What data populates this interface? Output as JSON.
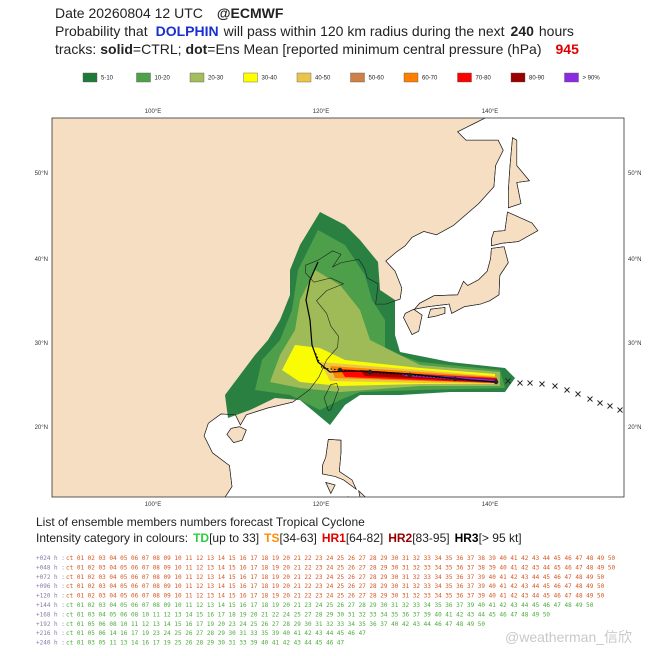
{
  "header": {
    "date": "Date 20260804 12 UTC",
    "source": "@ECMWF",
    "prob_prefix": "Probability that",
    "storm": "DOLPHIN",
    "prob_mid": "will pass within 120 km radius during the next",
    "hours": "240",
    "hours_unit": "hours",
    "tracks_label": "tracks:",
    "solid": "solid",
    "solid_desc": "=CTRL;",
    "dot": "dot",
    "dot_desc": "=Ens Mean [reported minimum central pressure (hPa)",
    "pressure": "945"
  },
  "legend": {
    "items": [
      {
        "label": "5-10",
        "color": "#1f7a3a"
      },
      {
        "label": "10-20",
        "color": "#4fa04a"
      },
      {
        "label": "20-30",
        "color": "#a3bd5a"
      },
      {
        "label": "30-40",
        "color": "#ffff00"
      },
      {
        "label": "40-50",
        "color": "#e9c54a"
      },
      {
        "label": "50-60",
        "color": "#cd8048"
      },
      {
        "label": "60-70",
        "color": "#ff7f00"
      },
      {
        "label": "70-80",
        "color": "#ff0000"
      },
      {
        "label": "80-90",
        "color": "#9b0000"
      },
      {
        "label": "> 90%",
        "color": "#8a2be2"
      }
    ]
  },
  "map": {
    "lon_labels": [
      "100°E",
      "120°E",
      "140°E"
    ],
    "lat_labels": [
      "50°N",
      "40°N",
      "30°N",
      "20°N"
    ]
  },
  "members": {
    "title": "List of ensemble members numbers forecast Tropical Cyclone",
    "intensity_prefix": "Intensity category in colours:",
    "categories": [
      {
        "code": "TD",
        "range": "[up to 33]",
        "color": "#2ecc40"
      },
      {
        "code": "TS",
        "range": "[34-63]",
        "color": "#ff8c00"
      },
      {
        "code": "HR1",
        "range": "[64-82]",
        "color": "#e00000"
      },
      {
        "code": "HR2",
        "range": "[83-95]",
        "color": "#9b0000"
      },
      {
        "code": "HR3",
        "range": "[> 95 kt]",
        "color": "#000000"
      }
    ],
    "rows": [
      {
        "label": "+024 h :",
        "members": "ct 01 02 03 04 05 06 07 08 09 10 11 12 13 14 15 16 17 18 19 20 21 22 23 24 25 26 27 28 29 30 31 32 33 34 35 36 37 38 39 40 41 42 43 44 45 46 47 48 49 50"
      },
      {
        "label": "+048 h :",
        "members": "ct 01 02 03 04 05 06 07 08 09 10 11 12 13 14 15 16 17 18 19 20 21 22 23 24 25 26 27 28 29 30 31 32 33 34 35 36 37 38 39 40 41 42 43 44 45 46 47 48 49 50"
      },
      {
        "label": "+072 h :",
        "members": "ct 01 02 03 04 05 06 07 08 09 10 11 12 13 14 15 16 17 18 19 20 21 22 23 24 25 26 27 28 29 30 31 32 33 34 35 36 37 39 40 41 42 43 44 45 46 47 48 49 50"
      },
      {
        "label": "+096 h :",
        "members": "ct 01 02 03 04 05 06 07 08 09 10 11 12 13 14 15 16 17 18 19 20 21 22 23 24 25 26 27 28 29 30 31 32 33 34 35 36 37 39 40 41 42 43 44 45 46 47 48 49 50"
      },
      {
        "label": "+120 h :",
        "members": "ct 01 02 03 04 05 06 07 08 09 10 11 12 13 14 15 16 17 18 19 20 21 22 23 24 25 26 27 28 29 30 31 32 33 34 35 36 37 39 40 41 42 43 44 45 46 47 48 49 50"
      },
      {
        "label": "+144 h :",
        "members": "ct 01 02 03 04 05 06 07 08 09 10 11 12 13 14 15 16 17 18 19 20 21 23 24 25 26 27 28 29 30 31 32 33 34 35 36 37 39 40 41 42 43 44 45 46 47 48 49 50"
      },
      {
        "label": "+168 h :",
        "members": "ct 01 03 04 05 06 08 10 11 12 13 14 15 16 17 18 19 20 21 22 24 25 27 28 29 30 31 32 33 34 35 36 37 39 40 41 42 43 44 45 46 47 48 49 50"
      },
      {
        "label": "+192 h :",
        "members": "ct 01 05 06 08 10 11 12 13 14 15 16 17 19 20 23 24 25 26 27 28 29 30 31 32 33 34 35 36 37 40 42 43 44 46 47 48 49 50"
      },
      {
        "label": "+216 h :",
        "members": "ct 01 05 06 14 16 17 19 23 24 25 26 27 28 29 30 31 33 35 39 40 41 42 43 44 45 46 47"
      },
      {
        "label": "+240 h :",
        "members": "ct 01 03 05 11 13 14 16 17 19 25 26 28 29 30 31 33 39 40 41 42 43 44 45 46 47"
      }
    ]
  },
  "watermark": "@weatherman_信欣"
}
